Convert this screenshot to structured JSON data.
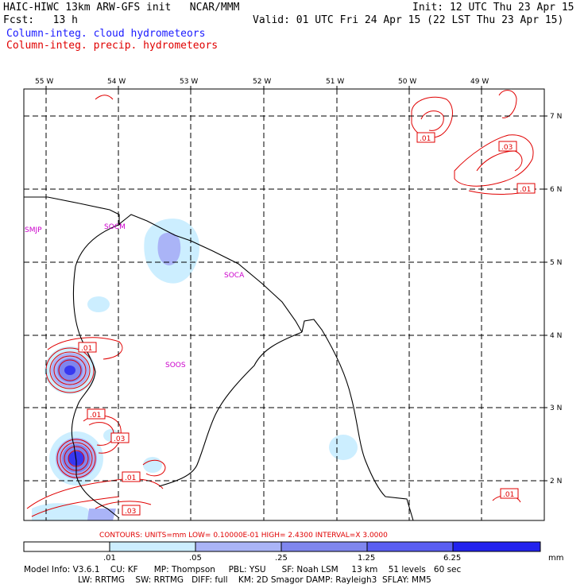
{
  "header": {
    "title": "HAIC-HIWC 13km ARW-GFS init   NCAR/MMM",
    "forecast": "Fcst:   13 h",
    "init": "Init: 12 UTC Thu 23 Apr 15",
    "valid": "Valid: 01 UTC Fri 24 Apr 15 (22 LST Thu 23 Apr 15)",
    "legend_cloud": "Column-integ. cloud hydrometeors",
    "legend_precip": "Column-integ. precip. hydrometeors"
  },
  "map": {
    "lon_labels": [
      "55 W",
      "54 W",
      "53 W",
      "52 W",
      "51 W",
      "50 W",
      "49 W"
    ],
    "lat_labels": [
      "7 N",
      "6 N",
      "5 N",
      "4 N",
      "3 N",
      "2 N"
    ],
    "stations": [
      "SMJP",
      "SOCM",
      "SOCA",
      "SOOS"
    ],
    "contour_labels": [
      ".01",
      ".03",
      ".01",
      ".01",
      ".03",
      ".01",
      ".03",
      ".01"
    ]
  },
  "contours_line": "CONTOURS:  UNITS=mm  LOW= 0.10000E-01  HIGH=  2.4300     INTERVAL=X  3.0000",
  "colorbar": {
    "ticks": [
      ".01",
      ".05",
      ".25",
      "1.25",
      "6.25"
    ],
    "unit": "mm",
    "colors": [
      "#ffffff",
      "#cceeff",
      "#aab4f7",
      "#7f86ee",
      "#5a5ef2",
      "#2222ee"
    ]
  },
  "model_info": {
    "line1": "Model Info: V3.6.1    CU: KF      MP: Thompson     PBL: YSU      SF: Noah LSM     13 km    51 levels   60 sec",
    "line2": "LW: RRTMG    SW: RRTMG   DIFF: full    KM: 2D Smagor DAMP: Rayleigh3  SFLAY: MM5"
  }
}
